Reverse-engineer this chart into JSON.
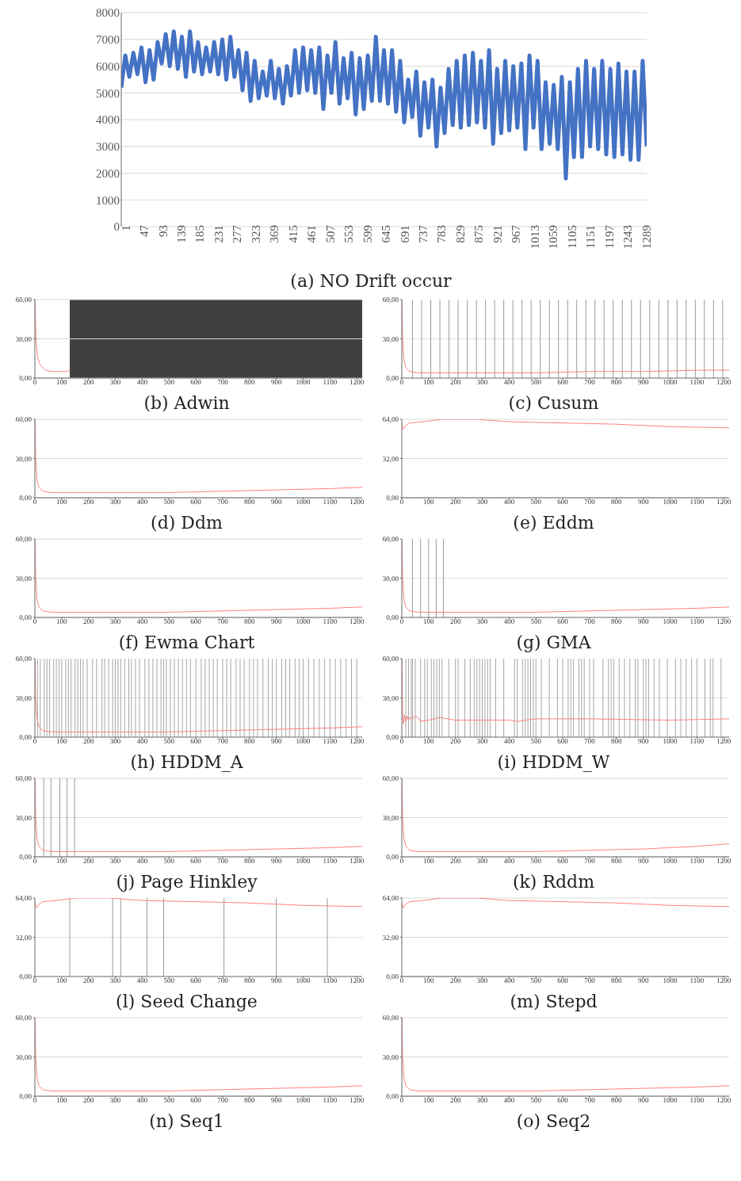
{
  "chart_data": [
    {
      "type": "line",
      "title": "(a) NO Drift occur",
      "color": "#4472c4",
      "grid": "y",
      "xlim": [
        1,
        1301
      ],
      "ylim": [
        0,
        8000
      ],
      "yticks": [
        0,
        1000,
        2000,
        3000,
        4000,
        5000,
        6000,
        7000,
        8000
      ],
      "xticks": [
        1,
        47,
        93,
        139,
        185,
        231,
        277,
        323,
        369,
        415,
        461,
        507,
        553,
        599,
        645,
        691,
        737,
        783,
        829,
        875,
        921,
        967,
        1013,
        1059,
        1105,
        1151,
        1197,
        1243,
        1289
      ],
      "x": [
        1,
        11,
        21,
        31,
        41,
        51,
        61,
        71,
        81,
        91,
        101,
        111,
        121,
        131,
        141,
        151,
        161,
        171,
        181,
        191,
        201,
        211,
        221,
        231,
        241,
        251,
        261,
        271,
        281,
        291,
        301,
        311,
        321,
        331,
        341,
        351,
        361,
        371,
        381,
        391,
        401,
        411,
        421,
        431,
        441,
        451,
        461,
        471,
        481,
        491,
        501,
        511,
        521,
        531,
        541,
        551,
        561,
        571,
        581,
        591,
        601,
        611,
        621,
        631,
        641,
        651,
        661,
        671,
        681,
        691,
        701,
        711,
        721,
        731,
        741,
        751,
        761,
        771,
        781,
        791,
        801,
        811,
        821,
        831,
        841,
        851,
        861,
        871,
        881,
        891,
        901,
        911,
        921,
        931,
        941,
        951,
        961,
        971,
        981,
        991,
        1001,
        1011,
        1021,
        1031,
        1041,
        1051,
        1061,
        1071,
        1081,
        1091,
        1101,
        1111,
        1121,
        1131,
        1141,
        1151,
        1161,
        1171,
        1181,
        1191,
        1201,
        1211,
        1221,
        1231,
        1241,
        1251,
        1261,
        1271,
        1281,
        1291,
        1301
      ],
      "values": [
        5200,
        6400,
        5600,
        6500,
        5700,
        6700,
        5400,
        6600,
        5500,
        6900,
        6100,
        7200,
        6000,
        7300,
        5900,
        7100,
        5600,
        7300,
        5800,
        6900,
        5700,
        6700,
        5800,
        6900,
        5700,
        7000,
        5500,
        7100,
        5600,
        6600,
        5100,
        6500,
        4700,
        6200,
        4800,
        5800,
        4900,
        6200,
        4800,
        5900,
        4600,
        6000,
        4900,
        6600,
        5000,
        6700,
        5100,
        6600,
        5000,
        6700,
        4400,
        6400,
        5000,
        6900,
        4600,
        6300,
        4800,
        6500,
        4200,
        6300,
        4400,
        6400,
        4700,
        7100,
        4700,
        6600,
        4600,
        6600,
        4300,
        6200,
        3900,
        5500,
        4100,
        5800,
        3400,
        5400,
        3700,
        5500,
        3000,
        5200,
        3500,
        5900,
        3800,
        6200,
        3700,
        6400,
        3800,
        6500,
        3900,
        6200,
        3700,
        6600,
        3100,
        5900,
        3500,
        6200,
        3600,
        6000,
        3700,
        6100,
        2900,
        6400,
        3700,
        6200,
        2900,
        5400,
        3100,
        5300,
        2900,
        5600,
        1800,
        5400,
        2600,
        5900,
        2600,
        6200,
        3000,
        5900,
        2900,
        6200,
        2700,
        5900,
        2600,
        6100,
        2700,
        5800,
        2500,
        5800,
        2500,
        6200,
        3000
      ]
    },
    {
      "type": "line",
      "title": "(b) Adwin",
      "color": "#ff8080",
      "grid": "y",
      "xlim": [
        0,
        1220
      ],
      "ylim": [
        0,
        60
      ],
      "yticks": [
        {
          "value": 0,
          "label": "0,00"
        },
        {
          "value": 30,
          "label": "30,00"
        },
        {
          "value": 60,
          "label": "60,00"
        }
      ],
      "xticks": [
        0,
        100,
        200,
        300,
        400,
        500,
        600,
        700,
        800,
        900,
        1000,
        1100,
        1200
      ],
      "x": [
        0,
        2,
        5,
        10,
        20,
        40,
        60,
        80,
        100,
        120,
        130
      ],
      "values": [
        60,
        45,
        28,
        16,
        10,
        6,
        5,
        5,
        5,
        5,
        6
      ],
      "bands": [
        {
          "axis": "x",
          "from": 130,
          "to": 1220,
          "color": "#404040"
        }
      ]
    },
    {
      "type": "line",
      "title": "(c) Cusum",
      "color": "#ff8080",
      "xlim": [
        0,
        1220
      ],
      "ylim": [
        0,
        60
      ],
      "yticks": [
        {
          "value": 0,
          "label": "0,00"
        },
        {
          "value": 30,
          "label": "30,00"
        },
        {
          "value": 60,
          "label": "60,00"
        }
      ],
      "xticks": [
        0,
        100,
        200,
        300,
        400,
        500,
        600,
        700,
        800,
        900,
        1000,
        1100,
        1200
      ],
      "x": [
        0,
        3,
        8,
        15,
        30,
        60,
        100,
        300,
        500,
        700,
        900,
        1100,
        1220
      ],
      "values": [
        60,
        30,
        14,
        8,
        5,
        4,
        4,
        4,
        4,
        5,
        5,
        6,
        6
      ],
      "ref_lines": [
        {
          "axis": "y",
          "value": 30,
          "color": "#d9d9d9"
        },
        {
          "axis": "x",
          "value": 40,
          "color": "#808080"
        },
        {
          "axis": "x",
          "value": 74,
          "color": "#808080"
        },
        {
          "axis": "x",
          "value": 108,
          "color": "#808080"
        },
        {
          "axis": "x",
          "value": 142,
          "color": "#808080"
        },
        {
          "axis": "x",
          "value": 176,
          "color": "#808080"
        },
        {
          "axis": "x",
          "value": 210,
          "color": "#808080"
        },
        {
          "axis": "x",
          "value": 244,
          "color": "#808080"
        },
        {
          "axis": "x",
          "value": 278,
          "color": "#808080"
        },
        {
          "axis": "x",
          "value": 312,
          "color": "#808080"
        },
        {
          "axis": "x",
          "value": 346,
          "color": "#808080"
        },
        {
          "axis": "x",
          "value": 380,
          "color": "#808080"
        },
        {
          "axis": "x",
          "value": 414,
          "color": "#808080"
        },
        {
          "axis": "x",
          "value": 448,
          "color": "#808080"
        },
        {
          "axis": "x",
          "value": 482,
          "color": "#808080"
        },
        {
          "axis": "x",
          "value": 516,
          "color": "#808080"
        },
        {
          "axis": "x",
          "value": 550,
          "color": "#808080"
        },
        {
          "axis": "x",
          "value": 584,
          "color": "#808080"
        },
        {
          "axis": "x",
          "value": 618,
          "color": "#808080"
        },
        {
          "axis": "x",
          "value": 652,
          "color": "#808080"
        },
        {
          "axis": "x",
          "value": 686,
          "color": "#808080"
        },
        {
          "axis": "x",
          "value": 720,
          "color": "#808080"
        },
        {
          "axis": "x",
          "value": 754,
          "color": "#808080"
        },
        {
          "axis": "x",
          "value": 788,
          "color": "#808080"
        },
        {
          "axis": "x",
          "value": 822,
          "color": "#808080"
        },
        {
          "axis": "x",
          "value": 856,
          "color": "#808080"
        },
        {
          "axis": "x",
          "value": 890,
          "color": "#808080"
        },
        {
          "axis": "x",
          "value": 924,
          "color": "#808080"
        },
        {
          "axis": "x",
          "value": 958,
          "color": "#808080"
        },
        {
          "axis": "x",
          "value": 992,
          "color": "#808080"
        },
        {
          "axis": "x",
          "value": 1026,
          "color": "#808080"
        },
        {
          "axis": "x",
          "value": 1060,
          "color": "#808080"
        },
        {
          "axis": "x",
          "value": 1094,
          "color": "#808080"
        },
        {
          "axis": "x",
          "value": 1128,
          "color": "#808080"
        },
        {
          "axis": "x",
          "value": 1162,
          "color": "#808080"
        },
        {
          "axis": "x",
          "value": 1196,
          "color": "#808080"
        }
      ]
    },
    {
      "type": "line",
      "title": "(d) Ddm",
      "color": "#ff8080",
      "grid": "y",
      "xlim": [
        0,
        1220
      ],
      "ylim": [
        0,
        60
      ],
      "yticks": [
        {
          "value": 0,
          "label": "0,00"
        },
        {
          "value": 30,
          "label": "30,00"
        },
        {
          "value": 60,
          "label": "60,00"
        }
      ],
      "xticks": [
        0,
        100,
        200,
        300,
        400,
        500,
        600,
        700,
        800,
        900,
        1000,
        1100,
        1200
      ],
      "x": [
        0,
        3,
        8,
        15,
        30,
        60,
        100,
        300,
        500,
        700,
        900,
        1100,
        1220
      ],
      "values": [
        60,
        30,
        14,
        8,
        5,
        4,
        4,
        4,
        4,
        5,
        6,
        7,
        8
      ]
    },
    {
      "type": "line",
      "title": "(e) Eddm",
      "color": "#ff8080",
      "grid": "y",
      "xlim": [
        0,
        1220
      ],
      "ylim": [
        0,
        64
      ],
      "yticks": [
        {
          "value": 0,
          "label": "0,00"
        },
        {
          "value": 32,
          "label": "32,00"
        },
        {
          "value": 64,
          "label": "64,00"
        }
      ],
      "xticks": [
        0,
        100,
        200,
        300,
        400,
        500,
        600,
        700,
        800,
        900,
        1000,
        1100,
        1200
      ],
      "x": [
        0,
        5,
        15,
        30,
        80,
        150,
        280,
        400,
        600,
        800,
        1000,
        1220
      ],
      "values": [
        60,
        56,
        59,
        61,
        62,
        64,
        64,
        62,
        61,
        60,
        58,
        57
      ]
    },
    {
      "type": "line",
      "title": "(f) Ewma Chart",
      "color": "#ff8080",
      "grid": "y",
      "xlim": [
        0,
        1220
      ],
      "ylim": [
        0,
        60
      ],
      "yticks": [
        {
          "value": 0,
          "label": "0,00"
        },
        {
          "value": 30,
          "label": "30,00"
        },
        {
          "value": 60,
          "label": "60,00"
        }
      ],
      "xticks": [
        0,
        100,
        200,
        300,
        400,
        500,
        600,
        700,
        800,
        900,
        1000,
        1100,
        1200
      ],
      "x": [
        0,
        3,
        8,
        15,
        30,
        60,
        100,
        300,
        500,
        700,
        900,
        1100,
        1220
      ],
      "values": [
        60,
        30,
        14,
        8,
        5,
        4,
        4,
        4,
        4,
        5,
        6,
        7,
        8
      ]
    },
    {
      "type": "line",
      "title": "(g) GMA",
      "color": "#ff8080",
      "xlim": [
        0,
        1220
      ],
      "ylim": [
        0,
        60
      ],
      "yticks": [
        {
          "value": 0,
          "label": "0,00"
        },
        {
          "value": 30,
          "label": "30,00"
        },
        {
          "value": 60,
          "label": "60,00"
        }
      ],
      "xticks": [
        0,
        100,
        200,
        300,
        400,
        500,
        600,
        700,
        800,
        900,
        1000,
        1100,
        1200
      ],
      "x": [
        0,
        3,
        8,
        15,
        30,
        60,
        100,
        300,
        500,
        700,
        900,
        1100,
        1220
      ],
      "values": [
        60,
        30,
        14,
        8,
        5,
        4,
        4,
        4,
        4,
        5,
        6,
        7,
        8
      ],
      "ref_lines": [
        {
          "axis": "y",
          "value": 30,
          "color": "#d9d9d9"
        },
        {
          "axis": "x",
          "value": 40,
          "color": "#808080"
        },
        {
          "axis": "x",
          "value": 70,
          "color": "#808080"
        },
        {
          "axis": "x",
          "value": 100,
          "color": "#808080"
        },
        {
          "axis": "x",
          "value": 128,
          "color": "#808080"
        },
        {
          "axis": "x",
          "value": 155,
          "color": "#808080"
        }
      ]
    },
    {
      "type": "line",
      "title": "(h) HDDM_A",
      "color": "#ff8080",
      "xlim": [
        0,
        1220
      ],
      "ylim": [
        0,
        60
      ],
      "yticks": [
        {
          "value": 0,
          "label": "0,00"
        },
        {
          "value": 30,
          "label": "30,00"
        },
        {
          "value": 60,
          "label": "60,00"
        }
      ],
      "xticks": [
        0,
        100,
        200,
        300,
        400,
        500,
        600,
        700,
        800,
        900,
        1000,
        1100,
        1200
      ],
      "x": [
        0,
        3,
        8,
        15,
        30,
        60,
        100,
        300,
        500,
        700,
        900,
        1100,
        1220
      ],
      "values": [
        60,
        30,
        14,
        8,
        5,
        4,
        4,
        4,
        4,
        5,
        6,
        7,
        8
      ],
      "ref_lines": [
        {
          "axis": "y",
          "value": 30,
          "color": "#d9d9d9"
        },
        {
          "axis": "x",
          "value": 10
        },
        {
          "axis": "x",
          "value": 20
        },
        {
          "axis": "x",
          "value": 35
        },
        {
          "axis": "x",
          "value": 45
        },
        {
          "axis": "x",
          "value": 55
        },
        {
          "axis": "x",
          "value": 70
        },
        {
          "axis": "x",
          "value": 80
        },
        {
          "axis": "x",
          "value": 90
        },
        {
          "axis": "x",
          "value": 100
        },
        {
          "axis": "x",
          "value": 115
        },
        {
          "axis": "x",
          "value": 125
        },
        {
          "axis": "x",
          "value": 135
        },
        {
          "axis": "x",
          "value": 150
        },
        {
          "axis": "x",
          "value": 160
        },
        {
          "axis": "x",
          "value": 170
        },
        {
          "axis": "x",
          "value": 180
        },
        {
          "axis": "x",
          "value": 195
        },
        {
          "axis": "x",
          "value": 215
        },
        {
          "axis": "x",
          "value": 230
        },
        {
          "axis": "x",
          "value": 250
        },
        {
          "axis": "x",
          "value": 260
        },
        {
          "axis": "x",
          "value": 275
        },
        {
          "axis": "x",
          "value": 290
        },
        {
          "axis": "x",
          "value": 300
        },
        {
          "axis": "x",
          "value": 310
        },
        {
          "axis": "x",
          "value": 320
        },
        {
          "axis": "x",
          "value": 335
        },
        {
          "axis": "x",
          "value": 350
        },
        {
          "axis": "x",
          "value": 360
        },
        {
          "axis": "x",
          "value": 375
        },
        {
          "axis": "x",
          "value": 390
        },
        {
          "axis": "x",
          "value": 410
        },
        {
          "axis": "x",
          "value": 425
        },
        {
          "axis": "x",
          "value": 440
        },
        {
          "axis": "x",
          "value": 455
        },
        {
          "axis": "x",
          "value": 470
        },
        {
          "axis": "x",
          "value": 480
        },
        {
          "axis": "x",
          "value": 490
        },
        {
          "axis": "x",
          "value": 505
        },
        {
          "axis": "x",
          "value": 520
        },
        {
          "axis": "x",
          "value": 535
        },
        {
          "axis": "x",
          "value": 550
        },
        {
          "axis": "x",
          "value": 565
        },
        {
          "axis": "x",
          "value": 580
        },
        {
          "axis": "x",
          "value": 600
        },
        {
          "axis": "x",
          "value": 620
        },
        {
          "axis": "x",
          "value": 635
        },
        {
          "axis": "x",
          "value": 650
        },
        {
          "axis": "x",
          "value": 665
        },
        {
          "axis": "x",
          "value": 680
        },
        {
          "axis": "x",
          "value": 700
        },
        {
          "axis": "x",
          "value": 715
        },
        {
          "axis": "x",
          "value": 730
        },
        {
          "axis": "x",
          "value": 750
        },
        {
          "axis": "x",
          "value": 765
        },
        {
          "axis": "x",
          "value": 780
        },
        {
          "axis": "x",
          "value": 800
        },
        {
          "axis": "x",
          "value": 815
        },
        {
          "axis": "x",
          "value": 830
        },
        {
          "axis": "x",
          "value": 850
        },
        {
          "axis": "x",
          "value": 870
        },
        {
          "axis": "x",
          "value": 885
        },
        {
          "axis": "x",
          "value": 900
        },
        {
          "axis": "x",
          "value": 920
        },
        {
          "axis": "x",
          "value": 935
        },
        {
          "axis": "x",
          "value": 950
        },
        {
          "axis": "x",
          "value": 970
        },
        {
          "axis": "x",
          "value": 985
        },
        {
          "axis": "x",
          "value": 1000
        },
        {
          "axis": "x",
          "value": 1020
        },
        {
          "axis": "x",
          "value": 1040
        },
        {
          "axis": "x",
          "value": 1060
        },
        {
          "axis": "x",
          "value": 1080
        },
        {
          "axis": "x",
          "value": 1100
        },
        {
          "axis": "x",
          "value": 1120
        },
        {
          "axis": "x",
          "value": 1140
        },
        {
          "axis": "x",
          "value": 1160
        },
        {
          "axis": "x",
          "value": 1180
        },
        {
          "axis": "x",
          "value": 1200
        }
      ]
    },
    {
      "type": "line",
      "title": "(i) HDDM_W",
      "color": "#ff8080",
      "xlim": [
        0,
        1220
      ],
      "ylim": [
        0,
        60
      ],
      "yticks": [
        {
          "value": 0,
          "label": "0,00"
        },
        {
          "value": 30,
          "label": "30,00"
        },
        {
          "value": 60,
          "label": "60,00"
        }
      ],
      "xticks": [
        0,
        100,
        200,
        300,
        400,
        500,
        600,
        700,
        800,
        900,
        1000,
        1100,
        1200
      ],
      "x": [
        0,
        3,
        6,
        10,
        15,
        20,
        25,
        30,
        40,
        50,
        60,
        70,
        100,
        140,
        170,
        200,
        400,
        430,
        500,
        700,
        1000,
        1220
      ],
      "values": [
        60,
        20,
        10,
        17,
        12,
        16,
        13,
        15,
        14,
        16,
        15,
        12,
        13,
        15,
        14,
        13,
        13,
        12,
        14,
        14,
        13,
        14
      ],
      "ref_lines": [
        {
          "axis": "y",
          "value": 30,
          "color": "#d9d9d9"
        },
        {
          "axis": "x",
          "value": 15
        },
        {
          "axis": "x",
          "value": 25
        },
        {
          "axis": "x",
          "value": 35
        },
        {
          "axis": "x",
          "value": 40
        },
        {
          "axis": "x",
          "value": 50
        },
        {
          "axis": "x",
          "value": 70
        },
        {
          "axis": "x",
          "value": 85
        },
        {
          "axis": "x",
          "value": 95
        },
        {
          "axis": "x",
          "value": 110
        },
        {
          "axis": "x",
          "value": 120
        },
        {
          "axis": "x",
          "value": 130
        },
        {
          "axis": "x",
          "value": 140
        },
        {
          "axis": "x",
          "value": 150
        },
        {
          "axis": "x",
          "value": 175
        },
        {
          "axis": "x",
          "value": 200
        },
        {
          "axis": "x",
          "value": 210
        },
        {
          "axis": "x",
          "value": 235
        },
        {
          "axis": "x",
          "value": 255
        },
        {
          "axis": "x",
          "value": 270
        },
        {
          "axis": "x",
          "value": 280
        },
        {
          "axis": "x",
          "value": 290
        },
        {
          "axis": "x",
          "value": 300
        },
        {
          "axis": "x",
          "value": 310
        },
        {
          "axis": "x",
          "value": 320
        },
        {
          "axis": "x",
          "value": 330
        },
        {
          "axis": "x",
          "value": 350
        },
        {
          "axis": "x",
          "value": 380
        },
        {
          "axis": "x",
          "value": 420
        },
        {
          "axis": "x",
          "value": 430
        },
        {
          "axis": "x",
          "value": 450
        },
        {
          "axis": "x",
          "value": 460
        },
        {
          "axis": "x",
          "value": 470
        },
        {
          "axis": "x",
          "value": 480
        },
        {
          "axis": "x",
          "value": 490
        },
        {
          "axis": "x",
          "value": 500
        },
        {
          "axis": "x",
          "value": 520
        },
        {
          "axis": "x",
          "value": 550
        },
        {
          "axis": "x",
          "value": 580
        },
        {
          "axis": "x",
          "value": 600
        },
        {
          "axis": "x",
          "value": 620
        },
        {
          "axis": "x",
          "value": 630
        },
        {
          "axis": "x",
          "value": 640
        },
        {
          "axis": "x",
          "value": 660
        },
        {
          "axis": "x",
          "value": 670
        },
        {
          "axis": "x",
          "value": 680
        },
        {
          "axis": "x",
          "value": 700
        },
        {
          "axis": "x",
          "value": 715
        },
        {
          "axis": "x",
          "value": 750
        },
        {
          "axis": "x",
          "value": 770
        },
        {
          "axis": "x",
          "value": 780
        },
        {
          "axis": "x",
          "value": 790
        },
        {
          "axis": "x",
          "value": 810
        },
        {
          "axis": "x",
          "value": 830
        },
        {
          "axis": "x",
          "value": 850
        },
        {
          "axis": "x",
          "value": 870
        },
        {
          "axis": "x",
          "value": 880
        },
        {
          "axis": "x",
          "value": 900
        },
        {
          "axis": "x",
          "value": 910
        },
        {
          "axis": "x",
          "value": 920
        },
        {
          "axis": "x",
          "value": 940
        },
        {
          "axis": "x",
          "value": 960
        },
        {
          "axis": "x",
          "value": 990
        },
        {
          "axis": "x",
          "value": 1020
        },
        {
          "axis": "x",
          "value": 1040
        },
        {
          "axis": "x",
          "value": 1060
        },
        {
          "axis": "x",
          "value": 1080
        },
        {
          "axis": "x",
          "value": 1100
        },
        {
          "axis": "x",
          "value": 1130
        },
        {
          "axis": "x",
          "value": 1150
        },
        {
          "axis": "x",
          "value": 1160
        },
        {
          "axis": "x",
          "value": 1190
        }
      ]
    },
    {
      "type": "line",
      "title": "(j) Page Hinkley",
      "color": "#ff8080",
      "grid": "y",
      "xlim": [
        0,
        1220
      ],
      "ylim": [
        0,
        60
      ],
      "yticks": [
        {
          "value": 0,
          "label": "0,00"
        },
        {
          "value": 30,
          "label": "30,00"
        },
        {
          "value": 60,
          "label": "60,00"
        }
      ],
      "xticks": [
        0,
        100,
        200,
        300,
        400,
        500,
        600,
        700,
        800,
        900,
        1000,
        1100,
        1200
      ],
      "x": [
        0,
        3,
        8,
        15,
        30,
        60,
        100,
        300,
        500,
        700,
        900,
        1100,
        1220
      ],
      "values": [
        60,
        30,
        14,
        8,
        5,
        4,
        4,
        4,
        4,
        5,
        6,
        7,
        8
      ],
      "ref_lines": [
        {
          "axis": "x",
          "value": 33,
          "color": "#808080"
        },
        {
          "axis": "x",
          "value": 60,
          "color": "#808080"
        },
        {
          "axis": "x",
          "value": 93,
          "color": "#808080"
        },
        {
          "axis": "x",
          "value": 120,
          "color": "#808080"
        },
        {
          "axis": "x",
          "value": 148,
          "color": "#808080"
        }
      ]
    },
    {
      "type": "line",
      "title": "(k) Rddm",
      "color": "#ff8080",
      "grid": "y",
      "xlim": [
        0,
        1220
      ],
      "ylim": [
        0,
        60
      ],
      "yticks": [
        {
          "value": 0,
          "label": "0,00"
        },
        {
          "value": 30,
          "label": "30,00"
        },
        {
          "value": 60,
          "label": "60,00"
        }
      ],
      "xticks": [
        0,
        100,
        200,
        300,
        400,
        500,
        600,
        700,
        800,
        900,
        1000,
        1100,
        1200
      ],
      "x": [
        0,
        3,
        8,
        15,
        30,
        60,
        100,
        300,
        500,
        700,
        900,
        1100,
        1220
      ],
      "values": [
        60,
        30,
        14,
        8,
        5,
        4,
        4,
        4,
        4,
        5,
        6,
        8,
        10
      ]
    },
    {
      "type": "line",
      "title": "(l) Seed Change",
      "color": "#ff8080",
      "xlim": [
        0,
        1220
      ],
      "ylim": [
        0,
        64
      ],
      "yticks": [
        {
          "value": 0,
          "label": "0,00"
        },
        {
          "value": 32,
          "label": "32,00"
        },
        {
          "value": 64,
          "label": "64,00"
        }
      ],
      "xticks": [
        0,
        100,
        200,
        300,
        400,
        500,
        600,
        700,
        800,
        900,
        1000,
        1100,
        1200
      ],
      "x": [
        0,
        5,
        15,
        30,
        80,
        150,
        280,
        400,
        600,
        800,
        1000,
        1220
      ],
      "values": [
        60,
        56,
        59,
        61,
        62,
        64,
        64,
        62,
        61,
        60,
        58,
        57
      ],
      "ref_lines": [
        {
          "axis": "y",
          "value": 32,
          "color": "#d9d9d9"
        },
        {
          "axis": "x",
          "value": 130,
          "color": "#808080"
        },
        {
          "axis": "x",
          "value": 290,
          "color": "#808080"
        },
        {
          "axis": "x",
          "value": 320,
          "color": "#808080"
        },
        {
          "axis": "x",
          "value": 418,
          "color": "#808080"
        },
        {
          "axis": "x",
          "value": 480,
          "color": "#808080"
        },
        {
          "axis": "x",
          "value": 705,
          "color": "#808080"
        },
        {
          "axis": "x",
          "value": 900,
          "color": "#808080"
        },
        {
          "axis": "x",
          "value": 1090,
          "color": "#808080"
        }
      ]
    },
    {
      "type": "line",
      "title": "(m) Stepd",
      "color": "#ff8080",
      "grid": "y",
      "xlim": [
        0,
        1220
      ],
      "ylim": [
        0,
        64
      ],
      "yticks": [
        {
          "value": 0,
          "label": "0,00"
        },
        {
          "value": 32,
          "label": "32,00"
        },
        {
          "value": 64,
          "label": "64,00"
        }
      ],
      "xticks": [
        0,
        100,
        200,
        300,
        400,
        500,
        600,
        700,
        800,
        900,
        1000,
        1100,
        1200
      ],
      "x": [
        0,
        5,
        15,
        30,
        80,
        150,
        280,
        400,
        600,
        800,
        1000,
        1220
      ],
      "values": [
        60,
        56,
        59,
        61,
        62,
        64,
        64,
        62,
        61,
        60,
        58,
        57
      ]
    },
    {
      "type": "line",
      "title": "(n) Seq1",
      "color": "#ff8080",
      "grid": "y",
      "xlim": [
        0,
        1220
      ],
      "ylim": [
        0,
        60
      ],
      "yticks": [
        {
          "value": 0,
          "label": "0,00"
        },
        {
          "value": 30,
          "label": "30,00"
        },
        {
          "value": 60,
          "label": "60,00"
        }
      ],
      "xticks": [
        0,
        100,
        200,
        300,
        400,
        500,
        600,
        700,
        800,
        900,
        1000,
        1100,
        1200
      ],
      "x": [
        0,
        3,
        8,
        15,
        30,
        60,
        100,
        300,
        500,
        700,
        900,
        1100,
        1220
      ],
      "values": [
        60,
        30,
        14,
        8,
        5,
        4,
        4,
        4,
        4,
        5,
        6,
        7,
        8
      ]
    },
    {
      "type": "line",
      "title": "(o) Seq2",
      "color": "#ff8080",
      "grid": "y",
      "xlim": [
        0,
        1220
      ],
      "ylim": [
        0,
        60
      ],
      "yticks": [
        {
          "value": 0,
          "label": "0,00"
        },
        {
          "value": 30,
          "label": "30,00"
        },
        {
          "value": 60,
          "label": "60,00"
        }
      ],
      "xticks": [
        0,
        100,
        200,
        300,
        400,
        500,
        600,
        700,
        800,
        900,
        1000,
        1100,
        1200
      ],
      "x": [
        0,
        3,
        8,
        15,
        30,
        60,
        100,
        300,
        500,
        700,
        900,
        1100,
        1220
      ],
      "values": [
        60,
        30,
        14,
        8,
        5,
        4,
        4,
        4,
        4,
        5,
        6,
        7,
        8
      ]
    }
  ]
}
